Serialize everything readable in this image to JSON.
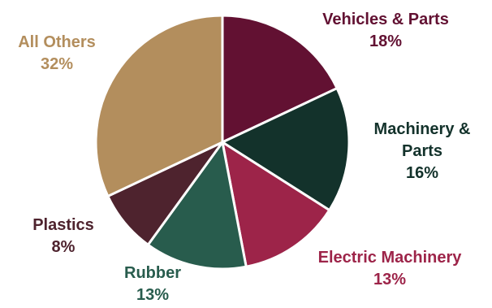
{
  "chart_data": {
    "type": "pie",
    "slices": [
      {
        "label_lines": [
          "Vehicles & Parts"
        ],
        "value_label": "18%",
        "value": 18,
        "color": "#621132"
      },
      {
        "label_lines": [
          "Machinery &",
          "Parts"
        ],
        "value_label": "16%",
        "value": 16,
        "color": "#13322b"
      },
      {
        "label_lines": [
          "Electric Machinery"
        ],
        "value_label": "13%",
        "value": 13,
        "color": "#9d2449"
      },
      {
        "label_lines": [
          "Rubber"
        ],
        "value_label": "13%",
        "value": 13,
        "color": "#285c4d"
      },
      {
        "label_lines": [
          "Plastics"
        ],
        "value_label": "8%",
        "value": 8,
        "color": "#4e232e"
      },
      {
        "label_lines": [
          "All Others"
        ],
        "value_label": "32%",
        "value": 32,
        "color": "#b38e5d"
      }
    ],
    "start": "12 o'clock",
    "direction": "clockwise",
    "legend": "none",
    "label_position": "outside, colored like slice"
  }
}
